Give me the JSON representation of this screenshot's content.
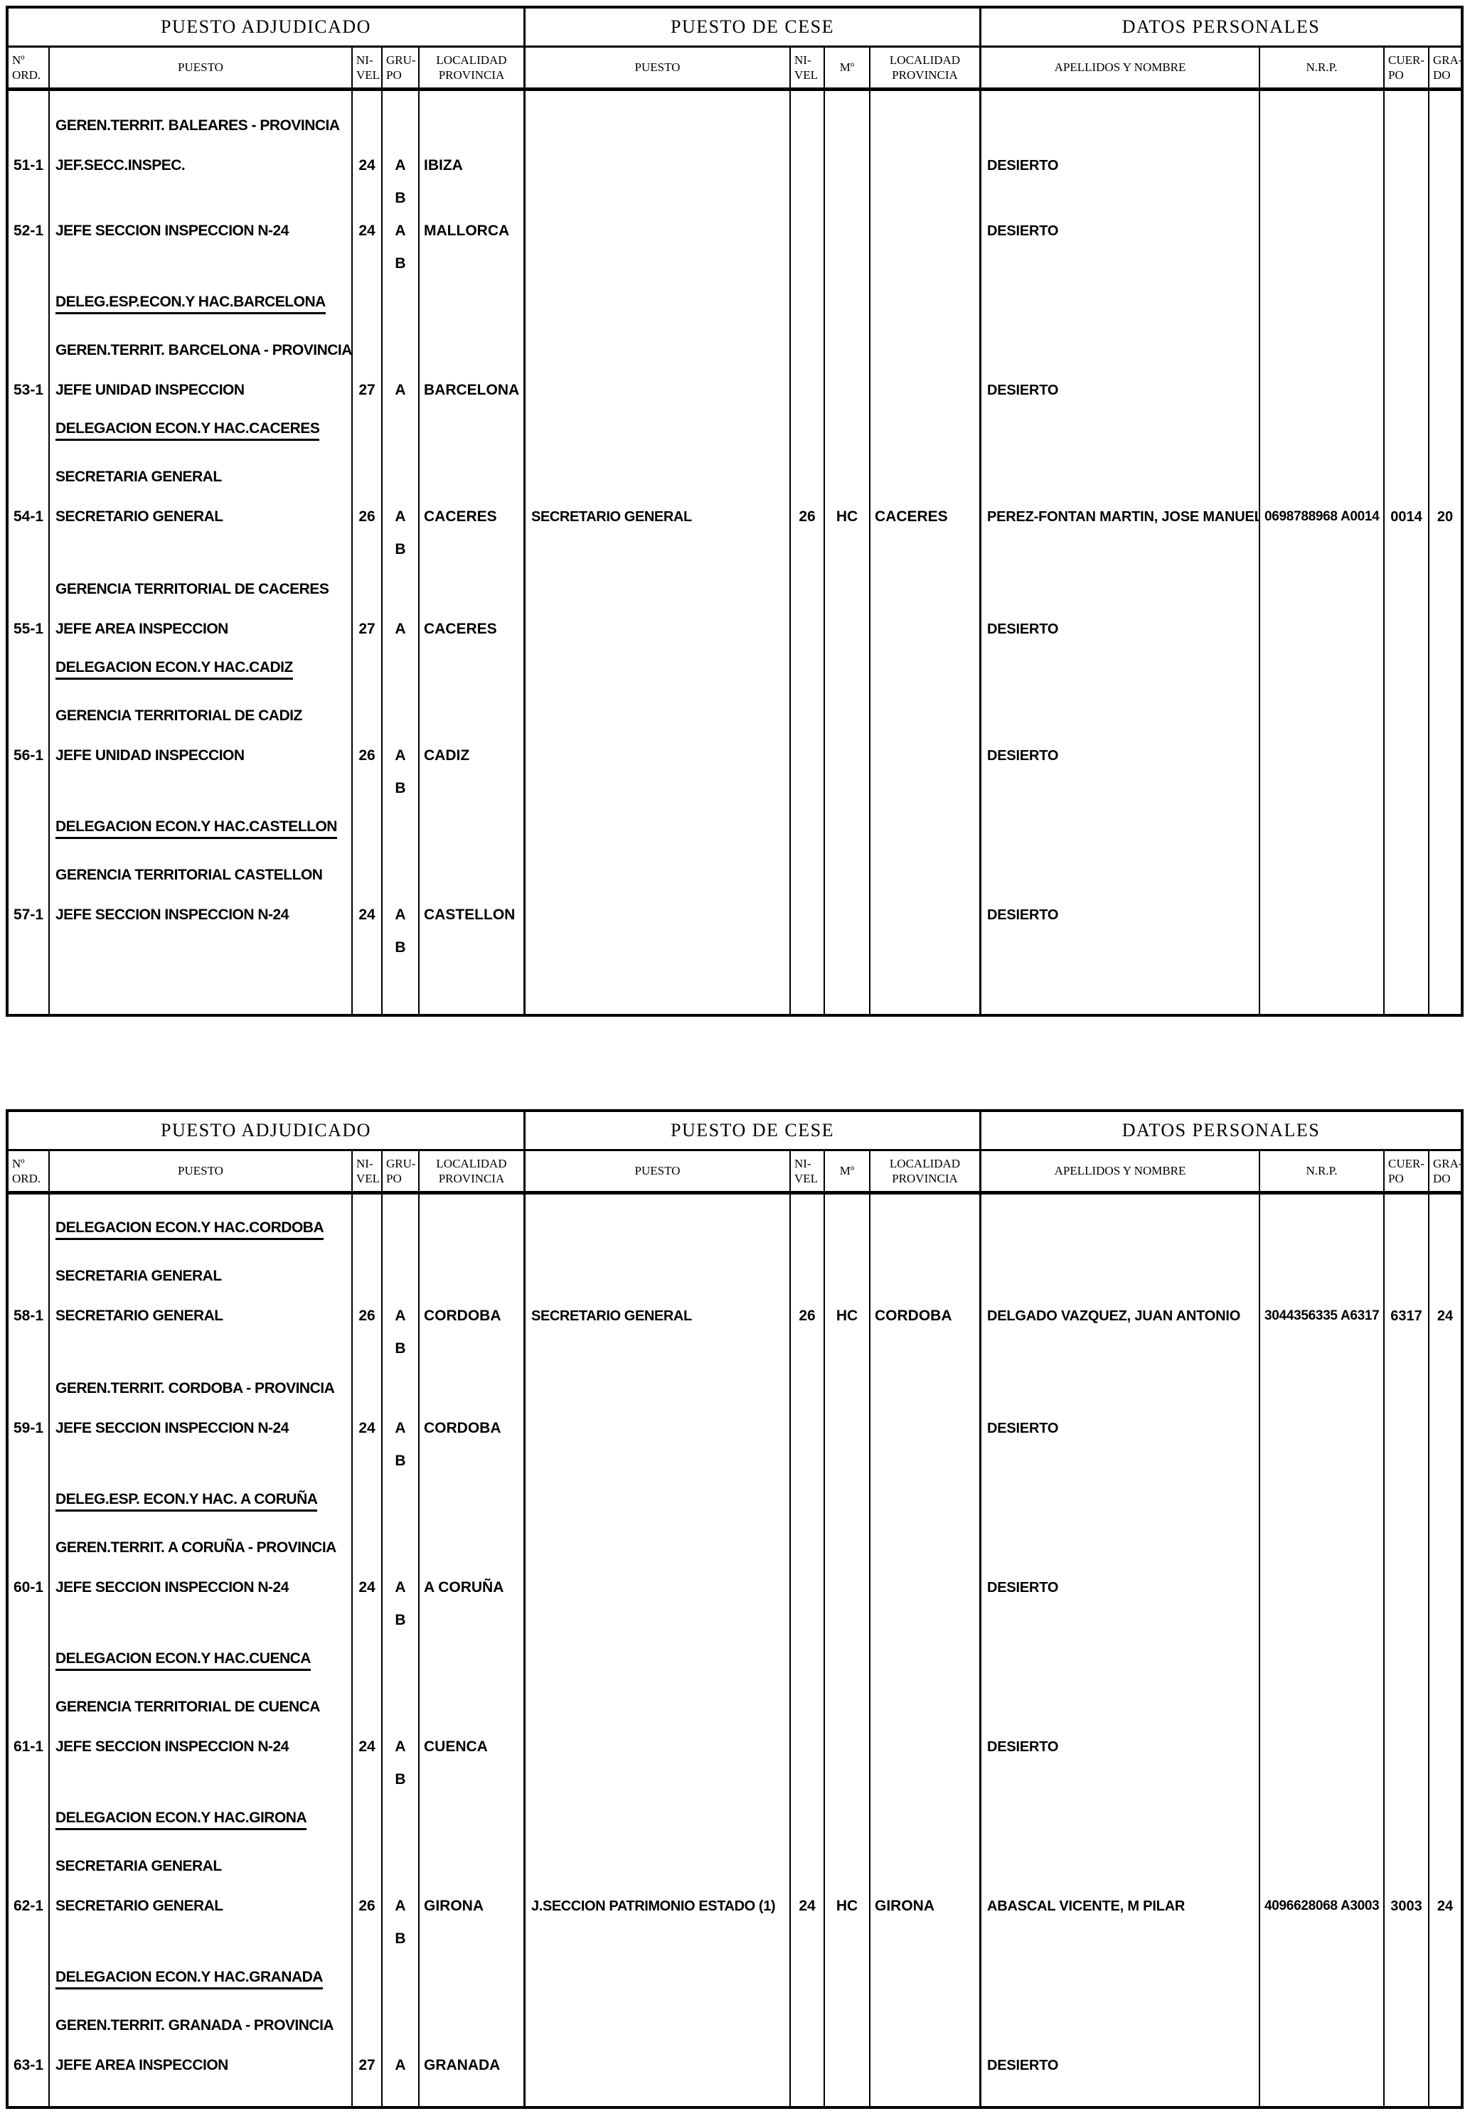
{
  "headers": {
    "adjudicado": "PUESTO ADJUDICADO",
    "cese": "PUESTO DE CESE",
    "datos": "DATOS PERSONALES",
    "ord": [
      "Nº",
      "ORD."
    ],
    "puesto": "PUESTO",
    "nivel": [
      "NI-",
      "VEL"
    ],
    "grupo": [
      "GRU-",
      "PO"
    ],
    "localidad": [
      "LOCALIDAD",
      "PROVINCIA"
    ],
    "ministerio": "Mº",
    "apellidos": "APELLIDOS Y NOMBRE",
    "nrp": "N.R.P.",
    "cuerpo": [
      "CUER-",
      "PO"
    ],
    "grado": [
      "GRA-",
      "DO"
    ]
  },
  "tables": [
    {
      "rows": [
        {
          "kind": "section",
          "text": "GEREN.TERRIT. BALEARES - PROVINCIA"
        },
        {
          "kind": "entry",
          "ord": "51-1",
          "puesto": "JEF.SECC.INSPEC.",
          "nivel": "24",
          "grupo": "A",
          "localidad": "IBIZA",
          "apellidos": "DESIERTO"
        },
        {
          "kind": "grupo2",
          "text": "B"
        },
        {
          "kind": "entry",
          "ord": "52-1",
          "puesto": "JEFE SECCION INSPECCION N-24",
          "nivel": "24",
          "grupo": "A",
          "localidad": "MALLORCA",
          "apellidos": "DESIERTO"
        },
        {
          "kind": "grupo2",
          "text": "B"
        },
        {
          "kind": "section",
          "underline": true,
          "text": "DELEG.ESP.ECON.Y HAC.BARCELONA"
        },
        {
          "kind": "section",
          "text": "GEREN.TERRIT. BARCELONA - PROVINCIA"
        },
        {
          "kind": "entry",
          "ord": "53-1",
          "puesto": "JEFE UNIDAD INSPECCION",
          "nivel": "27",
          "grupo": "A",
          "localidad": "BARCELONA",
          "apellidos": "DESIERTO"
        },
        {
          "kind": "section",
          "underline": true,
          "text": "DELEGACION ECON.Y HAC.CACERES"
        },
        {
          "kind": "section",
          "text": "SECRETARIA GENERAL"
        },
        {
          "kind": "entry",
          "ord": "54-1",
          "puesto": "SECRETARIO GENERAL",
          "nivel": "26",
          "grupo": "A",
          "localidad": "CACERES",
          "cese_puesto": "SECRETARIO GENERAL",
          "cese_nivel": "26",
          "ministerio": "HC",
          "cese_localidad": "CACERES",
          "apellidos": "PEREZ-FONTAN  MARTIN,  JOSE MANUEL",
          "nrp": "0698788968 A0014",
          "cuerpo": "0014",
          "grado": "20"
        },
        {
          "kind": "grupo2",
          "text": "B"
        },
        {
          "kind": "section",
          "text": "GERENCIA TERRITORIAL DE CACERES"
        },
        {
          "kind": "entry",
          "ord": "55-1",
          "puesto": "JEFE AREA INSPECCION",
          "nivel": "27",
          "grupo": "A",
          "localidad": "CACERES",
          "apellidos": "DESIERTO"
        },
        {
          "kind": "section",
          "underline": true,
          "text": "DELEGACION ECON.Y HAC.CADIZ"
        },
        {
          "kind": "section",
          "text": "GERENCIA TERRITORIAL DE CADIZ"
        },
        {
          "kind": "entry",
          "ord": "56-1",
          "puesto": "JEFE UNIDAD INSPECCION",
          "nivel": "26",
          "grupo": "A",
          "localidad": "CADIZ",
          "apellidos": "DESIERTO"
        },
        {
          "kind": "grupo2",
          "text": "B"
        },
        {
          "kind": "section",
          "underline": true,
          "text": "DELEGACION ECON.Y HAC.CASTELLON"
        },
        {
          "kind": "section",
          "text": "GERENCIA TERRITORIAL CASTELLON"
        },
        {
          "kind": "entry",
          "ord": "57-1",
          "puesto": "JEFE SECCION INSPECCION N-24",
          "nivel": "24",
          "grupo": "A",
          "localidad": "CASTELLON",
          "apellidos": "DESIERTO"
        },
        {
          "kind": "grupo2",
          "text": "B"
        }
      ]
    },
    {
      "rows": [
        {
          "kind": "section",
          "underline": true,
          "text": "DELEGACION ECON.Y HAC.CORDOBA"
        },
        {
          "kind": "section",
          "text": "SECRETARIA GENERAL"
        },
        {
          "kind": "entry",
          "ord": "58-1",
          "puesto": "SECRETARIO GENERAL",
          "nivel": "26",
          "grupo": "A",
          "localidad": "CORDOBA",
          "cese_puesto": "SECRETARIO GENERAL",
          "cese_nivel": "26",
          "ministerio": "HC",
          "cese_localidad": "CORDOBA",
          "apellidos": "DELGADO  VAZQUEZ,  JUAN ANTONIO",
          "nrp": "3044356335 A6317",
          "cuerpo": "6317",
          "grado": "24"
        },
        {
          "kind": "grupo2",
          "text": "B"
        },
        {
          "kind": "section",
          "text": "GEREN.TERRIT. CORDOBA - PROVINCIA"
        },
        {
          "kind": "entry",
          "ord": "59-1",
          "puesto": "JEFE SECCION INSPECCION N-24",
          "nivel": "24",
          "grupo": "A",
          "localidad": "CORDOBA",
          "apellidos": "DESIERTO"
        },
        {
          "kind": "grupo2",
          "text": "B"
        },
        {
          "kind": "section",
          "underline": true,
          "text": "DELEG.ESP. ECON.Y HAC. A CORUÑA"
        },
        {
          "kind": "section",
          "text": "GEREN.TERRIT. A CORUÑA - PROVINCIA"
        },
        {
          "kind": "entry",
          "ord": "60-1",
          "puesto": "JEFE SECCION INSPECCION N-24",
          "nivel": "24",
          "grupo": "A",
          "localidad": "A CORUÑA",
          "apellidos": "DESIERTO"
        },
        {
          "kind": "grupo2",
          "text": "B"
        },
        {
          "kind": "section",
          "underline": true,
          "text": "DELEGACION ECON.Y HAC.CUENCA"
        },
        {
          "kind": "section",
          "text": "GERENCIA TERRITORIAL DE CUENCA"
        },
        {
          "kind": "entry",
          "ord": "61-1",
          "puesto": "JEFE SECCION INSPECCION N-24",
          "nivel": "24",
          "grupo": "A",
          "localidad": "CUENCA",
          "apellidos": "DESIERTO"
        },
        {
          "kind": "grupo2",
          "text": "B"
        },
        {
          "kind": "section",
          "underline": true,
          "text": "DELEGACION ECON.Y HAC.GIRONA"
        },
        {
          "kind": "section",
          "text": "SECRETARIA GENERAL"
        },
        {
          "kind": "entry",
          "ord": "62-1",
          "puesto": "SECRETARIO GENERAL",
          "nivel": "26",
          "grupo": "A",
          "localidad": "GIRONA",
          "cese_puesto": "J.SECCION PATRIMONIO ESTADO (1)",
          "cese_nivel": "24",
          "ministerio": "HC",
          "cese_localidad": "GIRONA",
          "apellidos": "ABASCAL  VICENTE,  M PILAR",
          "nrp": "4096628068 A3003",
          "cuerpo": "3003",
          "grado": "24"
        },
        {
          "kind": "grupo2",
          "text": "B"
        },
        {
          "kind": "section",
          "underline": true,
          "text": "DELEGACION ECON.Y HAC.GRANADA"
        },
        {
          "kind": "section",
          "text": "GEREN.TERRIT. GRANADA - PROVINCIA"
        },
        {
          "kind": "entry",
          "ord": "63-1",
          "puesto": "JEFE AREA INSPECCION",
          "nivel": "27",
          "grupo": "A",
          "localidad": "GRANADA",
          "apellidos": "DESIERTO"
        }
      ]
    }
  ]
}
